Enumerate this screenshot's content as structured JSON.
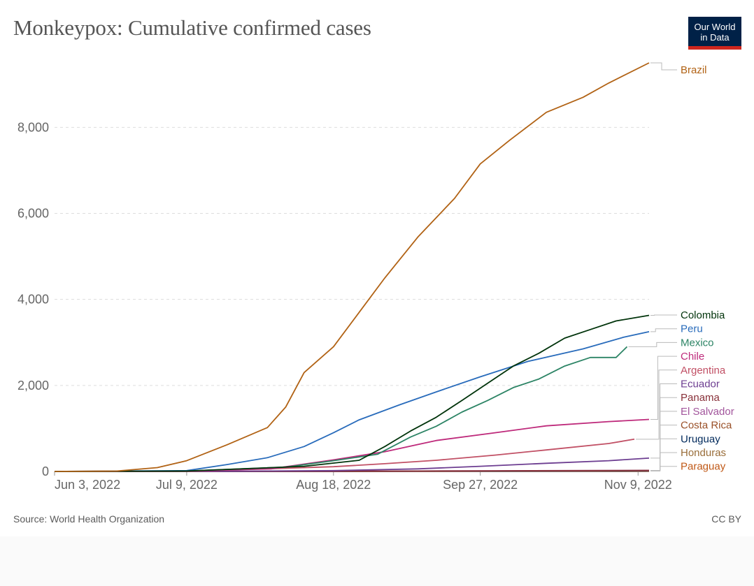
{
  "header": {
    "title": "Monkeypox: Cumulative confirmed cases",
    "logo_line1": "Our World",
    "logo_line2": "in Data"
  },
  "footer": {
    "source": "Source: World Health Organization",
    "license": "CC BY"
  },
  "chart_data": {
    "type": "line",
    "title": "Monkeypox: Cumulative confirmed cases",
    "xlabel": "",
    "ylabel": "",
    "x_range": [
      "2022-06-03",
      "2022-11-12"
    ],
    "ylim": [
      0,
      9500
    ],
    "y_ticks": [
      0,
      2000,
      4000,
      6000,
      8000
    ],
    "y_tick_labels": [
      "0",
      "2,000",
      "4,000",
      "6,000",
      "8,000"
    ],
    "x_ticks": [
      "2022-06-03",
      "2022-07-09",
      "2022-08-18",
      "2022-09-27",
      "2022-11-09"
    ],
    "x_tick_labels": [
      "Jun 3, 2022",
      "Jul 9, 2022",
      "Aug 18, 2022",
      "Sep 27, 2022",
      "Nov 9, 2022"
    ],
    "grid": "horizontal dashed",
    "legend": "right, labels at line ends",
    "series": [
      {
        "name": "Brazil",
        "color": "#b16214",
        "x": [
          "2022-06-03",
          "2022-06-20",
          "2022-07-01",
          "2022-07-09",
          "2022-07-20",
          "2022-07-31",
          "2022-08-05",
          "2022-08-10",
          "2022-08-18",
          "2022-08-25",
          "2022-09-01",
          "2022-09-10",
          "2022-09-20",
          "2022-09-27",
          "2022-10-05",
          "2022-10-15",
          "2022-10-25",
          "2022-11-01",
          "2022-11-12"
        ],
        "values": [
          0,
          10,
          90,
          250,
          620,
          1020,
          1500,
          2300,
          2900,
          3700,
          4500,
          5450,
          6350,
          7150,
          7700,
          8350,
          8700,
          9030,
          9500
        ]
      },
      {
        "name": "Colombia",
        "color": "#00330a",
        "x": [
          "2022-06-03",
          "2022-07-09",
          "2022-08-10",
          "2022-08-25",
          "2022-09-01",
          "2022-09-08",
          "2022-09-15",
          "2022-09-22",
          "2022-09-29",
          "2022-10-06",
          "2022-10-13",
          "2022-10-20",
          "2022-10-27",
          "2022-11-03",
          "2022-11-12"
        ],
        "values": [
          0,
          10,
          120,
          260,
          580,
          940,
          1260,
          1650,
          2050,
          2450,
          2750,
          3100,
          3300,
          3500,
          3630
        ]
      },
      {
        "name": "Peru",
        "color": "#286bbb",
        "x": [
          "2022-06-03",
          "2022-07-09",
          "2022-07-20",
          "2022-07-31",
          "2022-08-10",
          "2022-08-18",
          "2022-08-25",
          "2022-09-05",
          "2022-09-15",
          "2022-09-27",
          "2022-10-10",
          "2022-10-25",
          "2022-11-05",
          "2022-11-12"
        ],
        "values": [
          0,
          20,
          160,
          320,
          580,
          900,
          1200,
          1550,
          1850,
          2200,
          2560,
          2850,
          3120,
          3250
        ]
      },
      {
        "name": "Mexico",
        "color": "#2c8465",
        "x": [
          "2022-06-03",
          "2022-07-09",
          "2022-08-05",
          "2022-08-18",
          "2022-08-30",
          "2022-09-08",
          "2022-09-15",
          "2022-09-22",
          "2022-09-29",
          "2022-10-06",
          "2022-10-13",
          "2022-10-20",
          "2022-10-27",
          "2022-11-03",
          "2022-11-06"
        ],
        "values": [
          0,
          10,
          100,
          250,
          400,
          800,
          1050,
          1380,
          1650,
          1950,
          2150,
          2450,
          2650,
          2650,
          2900
        ]
      },
      {
        "name": "Chile",
        "color": "#be2a7b",
        "x": [
          "2022-06-03",
          "2022-07-09",
          "2022-08-01",
          "2022-08-18",
          "2022-09-01",
          "2022-09-15",
          "2022-10-01",
          "2022-10-15",
          "2022-11-01",
          "2022-11-12"
        ],
        "values": [
          0,
          10,
          60,
          270,
          460,
          720,
          900,
          1060,
          1160,
          1210
        ]
      },
      {
        "name": "Argentina",
        "color": "#c15065",
        "x": [
          "2022-06-03",
          "2022-07-09",
          "2022-08-18",
          "2022-09-01",
          "2022-09-15",
          "2022-10-01",
          "2022-10-15",
          "2022-11-01",
          "2022-11-08"
        ],
        "values": [
          0,
          5,
          110,
          180,
          260,
          380,
          500,
          650,
          750
        ]
      },
      {
        "name": "Ecuador",
        "color": "#6d3e91",
        "x": [
          "2022-06-03",
          "2022-07-20",
          "2022-08-18",
          "2022-09-10",
          "2022-09-27",
          "2022-10-15",
          "2022-11-01",
          "2022-11-12"
        ],
        "values": [
          0,
          5,
          20,
          60,
          120,
          190,
          250,
          310
        ]
      },
      {
        "name": "Panama",
        "color": "#883039",
        "x": [
          "2022-06-03",
          "2022-08-18",
          "2022-10-01",
          "2022-11-12"
        ],
        "values": [
          0,
          5,
          15,
          25
        ]
      },
      {
        "name": "El Salvador",
        "color": "#a2559c",
        "x": [
          "2022-06-03",
          "2022-08-18",
          "2022-10-01",
          "2022-11-12"
        ],
        "values": [
          0,
          5,
          15,
          25
        ]
      },
      {
        "name": "Costa Rica",
        "color": "#9a5129",
        "x": [
          "2022-06-03",
          "2022-08-18",
          "2022-10-01",
          "2022-11-12"
        ],
        "values": [
          0,
          5,
          10,
          20
        ]
      },
      {
        "name": "Uruguay",
        "color": "#00295b",
        "x": [
          "2022-06-03",
          "2022-08-18",
          "2022-10-01",
          "2022-11-12"
        ],
        "values": [
          0,
          3,
          8,
          15
        ]
      },
      {
        "name": "Honduras",
        "color": "#996d39",
        "x": [
          "2022-06-03",
          "2022-08-18",
          "2022-10-01",
          "2022-11-12"
        ],
        "values": [
          0,
          3,
          8,
          14
        ]
      },
      {
        "name": "Paraguay",
        "color": "#c05917",
        "x": [
          "2022-06-03",
          "2022-08-18",
          "2022-10-01",
          "2022-11-12"
        ],
        "values": [
          0,
          2,
          6,
          10
        ]
      }
    ]
  }
}
